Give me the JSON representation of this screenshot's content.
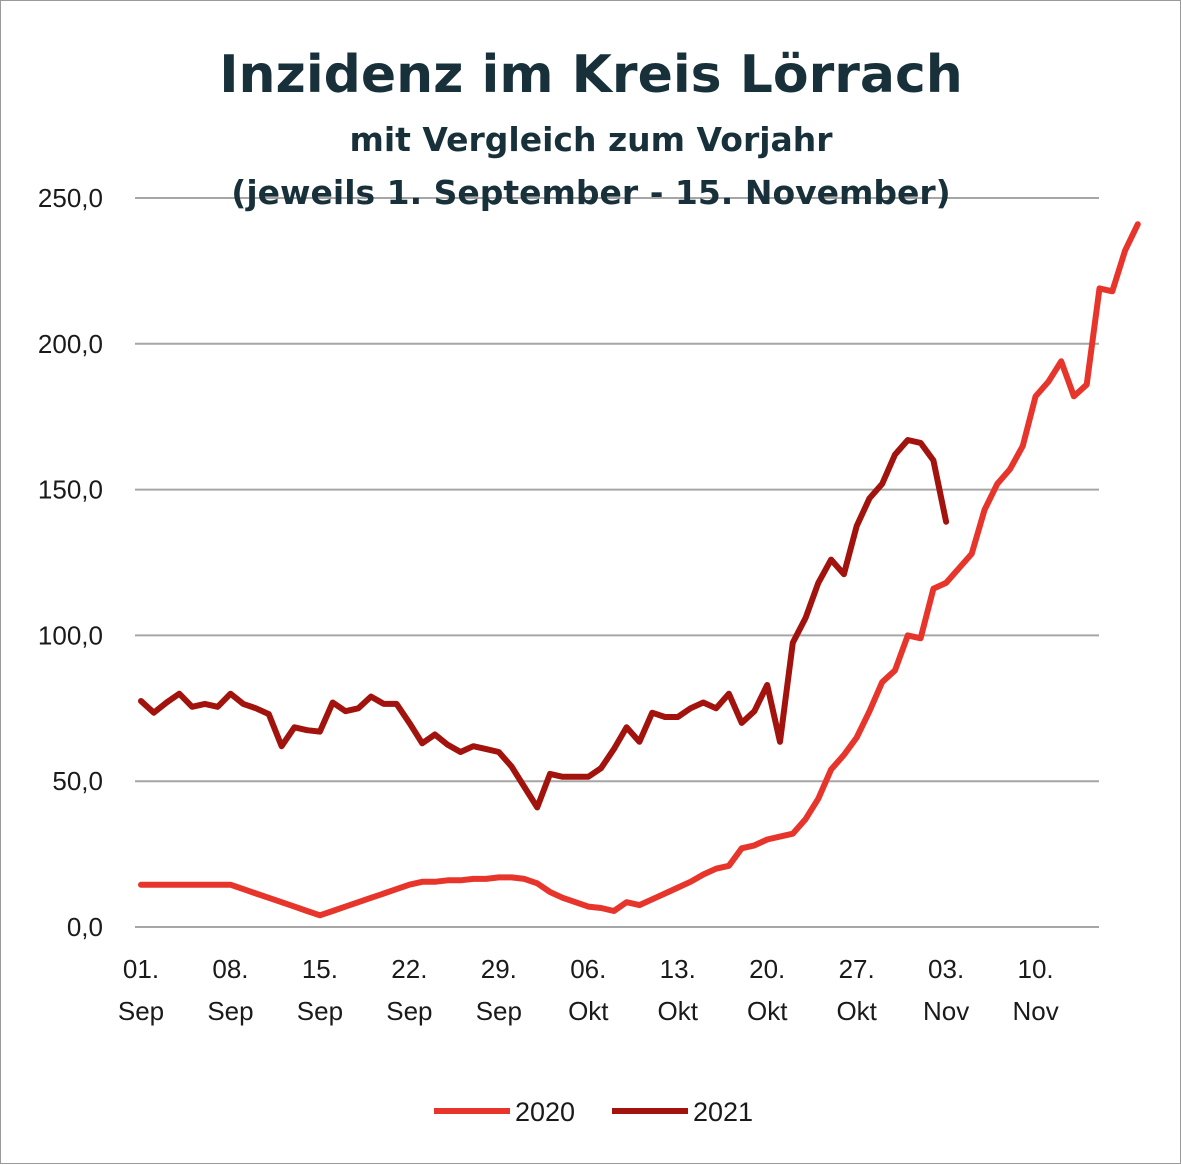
{
  "chart_data": {
    "type": "line",
    "title": "Inzidenz im Kreis Lörrach",
    "subtitle": "mit Vergleich zum Vorjahr",
    "subtitle2": "(jeweils 1. September - 15. November)",
    "xlabel": "",
    "ylabel": "",
    "ylim": [
      0,
      250
    ],
    "yticks": [
      "0,0",
      "50,0",
      "100,0",
      "150,0",
      "200,0",
      "250,0"
    ],
    "xticks": [
      {
        "day": 0,
        "line1": "01.",
        "line2": "Sep"
      },
      {
        "day": 7,
        "line1": "08.",
        "line2": "Sep"
      },
      {
        "day": 14,
        "line1": "15.",
        "line2": "Sep"
      },
      {
        "day": 21,
        "line1": "22.",
        "line2": "Sep"
      },
      {
        "day": 28,
        "line1": "29.",
        "line2": "Sep"
      },
      {
        "day": 35,
        "line1": "06.",
        "line2": "Okt"
      },
      {
        "day": 42,
        "line1": "13.",
        "line2": "Okt"
      },
      {
        "day": 49,
        "line1": "20.",
        "line2": "Okt"
      },
      {
        "day": 56,
        "line1": "27.",
        "line2": "Okt"
      },
      {
        "day": 63,
        "line1": "03.",
        "line2": "Nov"
      },
      {
        "day": 70,
        "line1": "10.",
        "line2": "Nov"
      }
    ],
    "grid": true,
    "legend": "bottom",
    "series": [
      {
        "name": "2020",
        "color": "#e8352c",
        "values": [
          14.5,
          14.5,
          14.5,
          14.5,
          14.5,
          14.5,
          14.5,
          14.5,
          13,
          11.5,
          10,
          8.5,
          7,
          5.5,
          4,
          5.5,
          7,
          8.5,
          10,
          11.5,
          13,
          14.5,
          15.5,
          15.5,
          16,
          16,
          16.5,
          16.5,
          17,
          17,
          16.5,
          15,
          12,
          10,
          8.5,
          7,
          6.5,
          5.5,
          8.5,
          7.5,
          9.5,
          11.5,
          13.5,
          15.5,
          18,
          20,
          21,
          27,
          28,
          30,
          31,
          32,
          37,
          44,
          54,
          59,
          65,
          74,
          84,
          88,
          100,
          99,
          116,
          118,
          123,
          128,
          143,
          152,
          157,
          165,
          182,
          187,
          194,
          182,
          186,
          219,
          218,
          232,
          241
        ]
      },
      {
        "name": "2021",
        "color": "#a3130d",
        "values": [
          77.5,
          73.5,
          77,
          80,
          75.5,
          76.5,
          75.5,
          80,
          76.5,
          75,
          73,
          62,
          68.5,
          67.5,
          67,
          77,
          74,
          75,
          79,
          76.5,
          76.5,
          70,
          63,
          66,
          62.5,
          60,
          62,
          61,
          60,
          55,
          48,
          41,
          52.5,
          51.5,
          51.5,
          51.5,
          54.5,
          61,
          68.5,
          63.5,
          73.5,
          72,
          72,
          75,
          77,
          75,
          80,
          70,
          74,
          83,
          63.5,
          97.5,
          106,
          118,
          126,
          121,
          137.5,
          147,
          152,
          162,
          167,
          166,
          160,
          139
        ]
      }
    ]
  }
}
